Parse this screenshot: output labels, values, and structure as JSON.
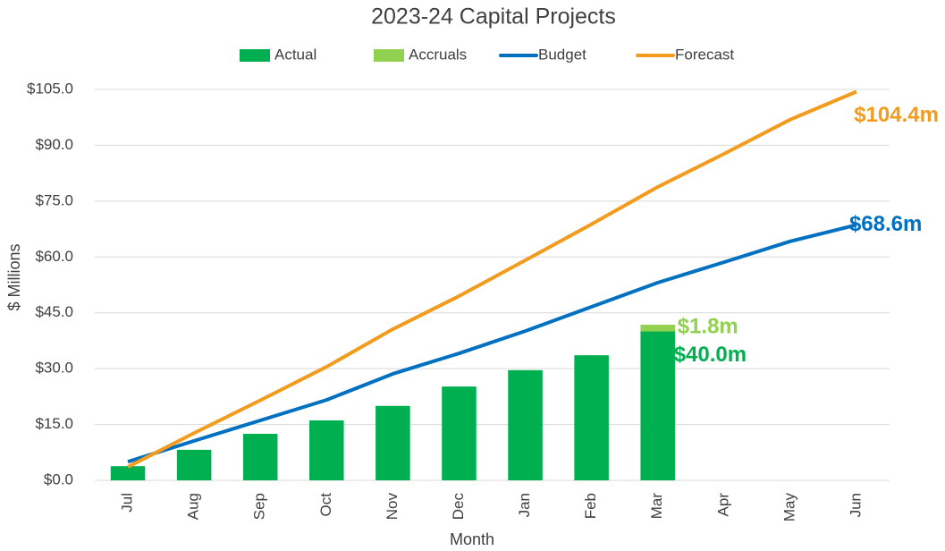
{
  "chart_data": {
    "type": "bar",
    "title": "2023-24 Capital Projects",
    "x_label": "Month",
    "y_label": "$ Millions",
    "categories": [
      "Jul",
      "Aug",
      "Sep",
      "Oct",
      "Nov",
      "Dec",
      "Jan",
      "Feb",
      "Mar",
      "Apr",
      "May",
      "Jun"
    ],
    "series": [
      {
        "name": "Actual",
        "type": "bar",
        "stack": true,
        "color": "#00b050",
        "values": [
          3.8,
          8.2,
          12.5,
          16.1,
          20.0,
          25.2,
          29.6,
          33.6,
          40.0,
          null,
          null,
          null
        ],
        "value_labels": [
          null,
          null,
          null,
          null,
          null,
          null,
          null,
          null,
          "$40.0m",
          null,
          null,
          null
        ]
      },
      {
        "name": "Accruals",
        "type": "bar",
        "stack": true,
        "color": "#92d050",
        "values": [
          null,
          null,
          null,
          null,
          null,
          null,
          null,
          null,
          1.8,
          null,
          null,
          null
        ],
        "value_labels": [
          null,
          null,
          null,
          null,
          null,
          null,
          null,
          null,
          "$1.8m",
          null,
          null,
          null
        ]
      },
      {
        "name": "Budget",
        "type": "line",
        "color": "#0070c0",
        "values": [
          5.0,
          10.6,
          16.1,
          21.6,
          28.6,
          34.1,
          40.1,
          46.6,
          53.1,
          58.6,
          64.2,
          68.6
        ],
        "value_labels": [
          null,
          null,
          null,
          null,
          null,
          null,
          null,
          null,
          null,
          null,
          null,
          "$68.6m"
        ]
      },
      {
        "name": "Forecast",
        "type": "line",
        "color": "#f29b1d",
        "values": [
          3.6,
          12.7,
          21.5,
          30.5,
          40.6,
          49.5,
          59.1,
          68.8,
          78.8,
          87.7,
          96.9,
          104.4
        ],
        "value_labels": [
          null,
          null,
          null,
          null,
          null,
          null,
          null,
          null,
          null,
          null,
          null,
          "$104.4m"
        ]
      }
    ],
    "ylim": [
      0,
      105
    ],
    "yticks": [
      {
        "value": 0,
        "label": "$0.0"
      },
      {
        "value": 15,
        "label": "$15.0"
      },
      {
        "value": 30,
        "label": "$30.0"
      },
      {
        "value": 45,
        "label": "$45.0"
      },
      {
        "value": 60,
        "label": "$60.0"
      },
      {
        "value": 75,
        "label": "$75.0"
      },
      {
        "value": 90,
        "label": "$90.0"
      },
      {
        "value": 105,
        "label": "$105.0"
      }
    ],
    "grid": true,
    "legend": "top"
  }
}
